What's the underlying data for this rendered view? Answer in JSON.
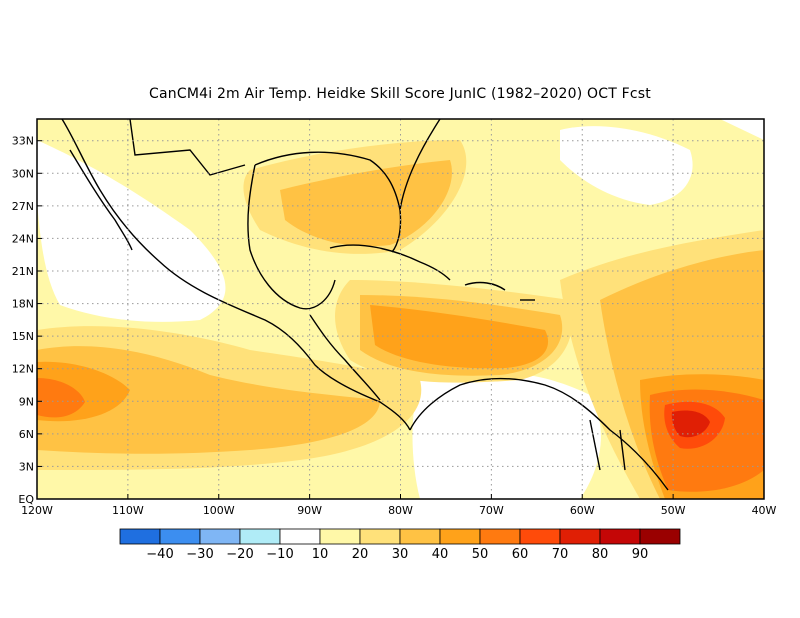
{
  "title": "CanCM4i  2m Air Temp. Heidke Skill Score JunIC (1982–2020) OCT Fcst",
  "map": {
    "projection": "equirectangular",
    "lon_range": [
      -120,
      -40
    ],
    "lat_range": [
      0,
      35
    ],
    "grid": "dotted",
    "lat_ticks": [
      "EQ",
      "3N",
      "6N",
      "9N",
      "12N",
      "15N",
      "18N",
      "21N",
      "24N",
      "27N",
      "30N",
      "33N"
    ],
    "lon_ticks": [
      "120W",
      "110W",
      "100W",
      "90W",
      "80W",
      "70W",
      "60W",
      "50W",
      "40W"
    ]
  },
  "colorbar": {
    "labels": [
      "−40",
      "−30",
      "−20",
      "−10",
      "10",
      "20",
      "30",
      "40",
      "50",
      "60",
      "70",
      "80",
      "90"
    ],
    "colors": [
      "#1f6fe0",
      "#3c8ef0",
      "#7fb6f5",
      "#b0ecf7",
      "#ffffff",
      "#fff8a8",
      "#ffe17a",
      "#ffc244",
      "#ffa21a",
      "#ff7a10",
      "#ff4b0a",
      "#e01f05",
      "#c40606",
      "#9a0000"
    ]
  }
}
